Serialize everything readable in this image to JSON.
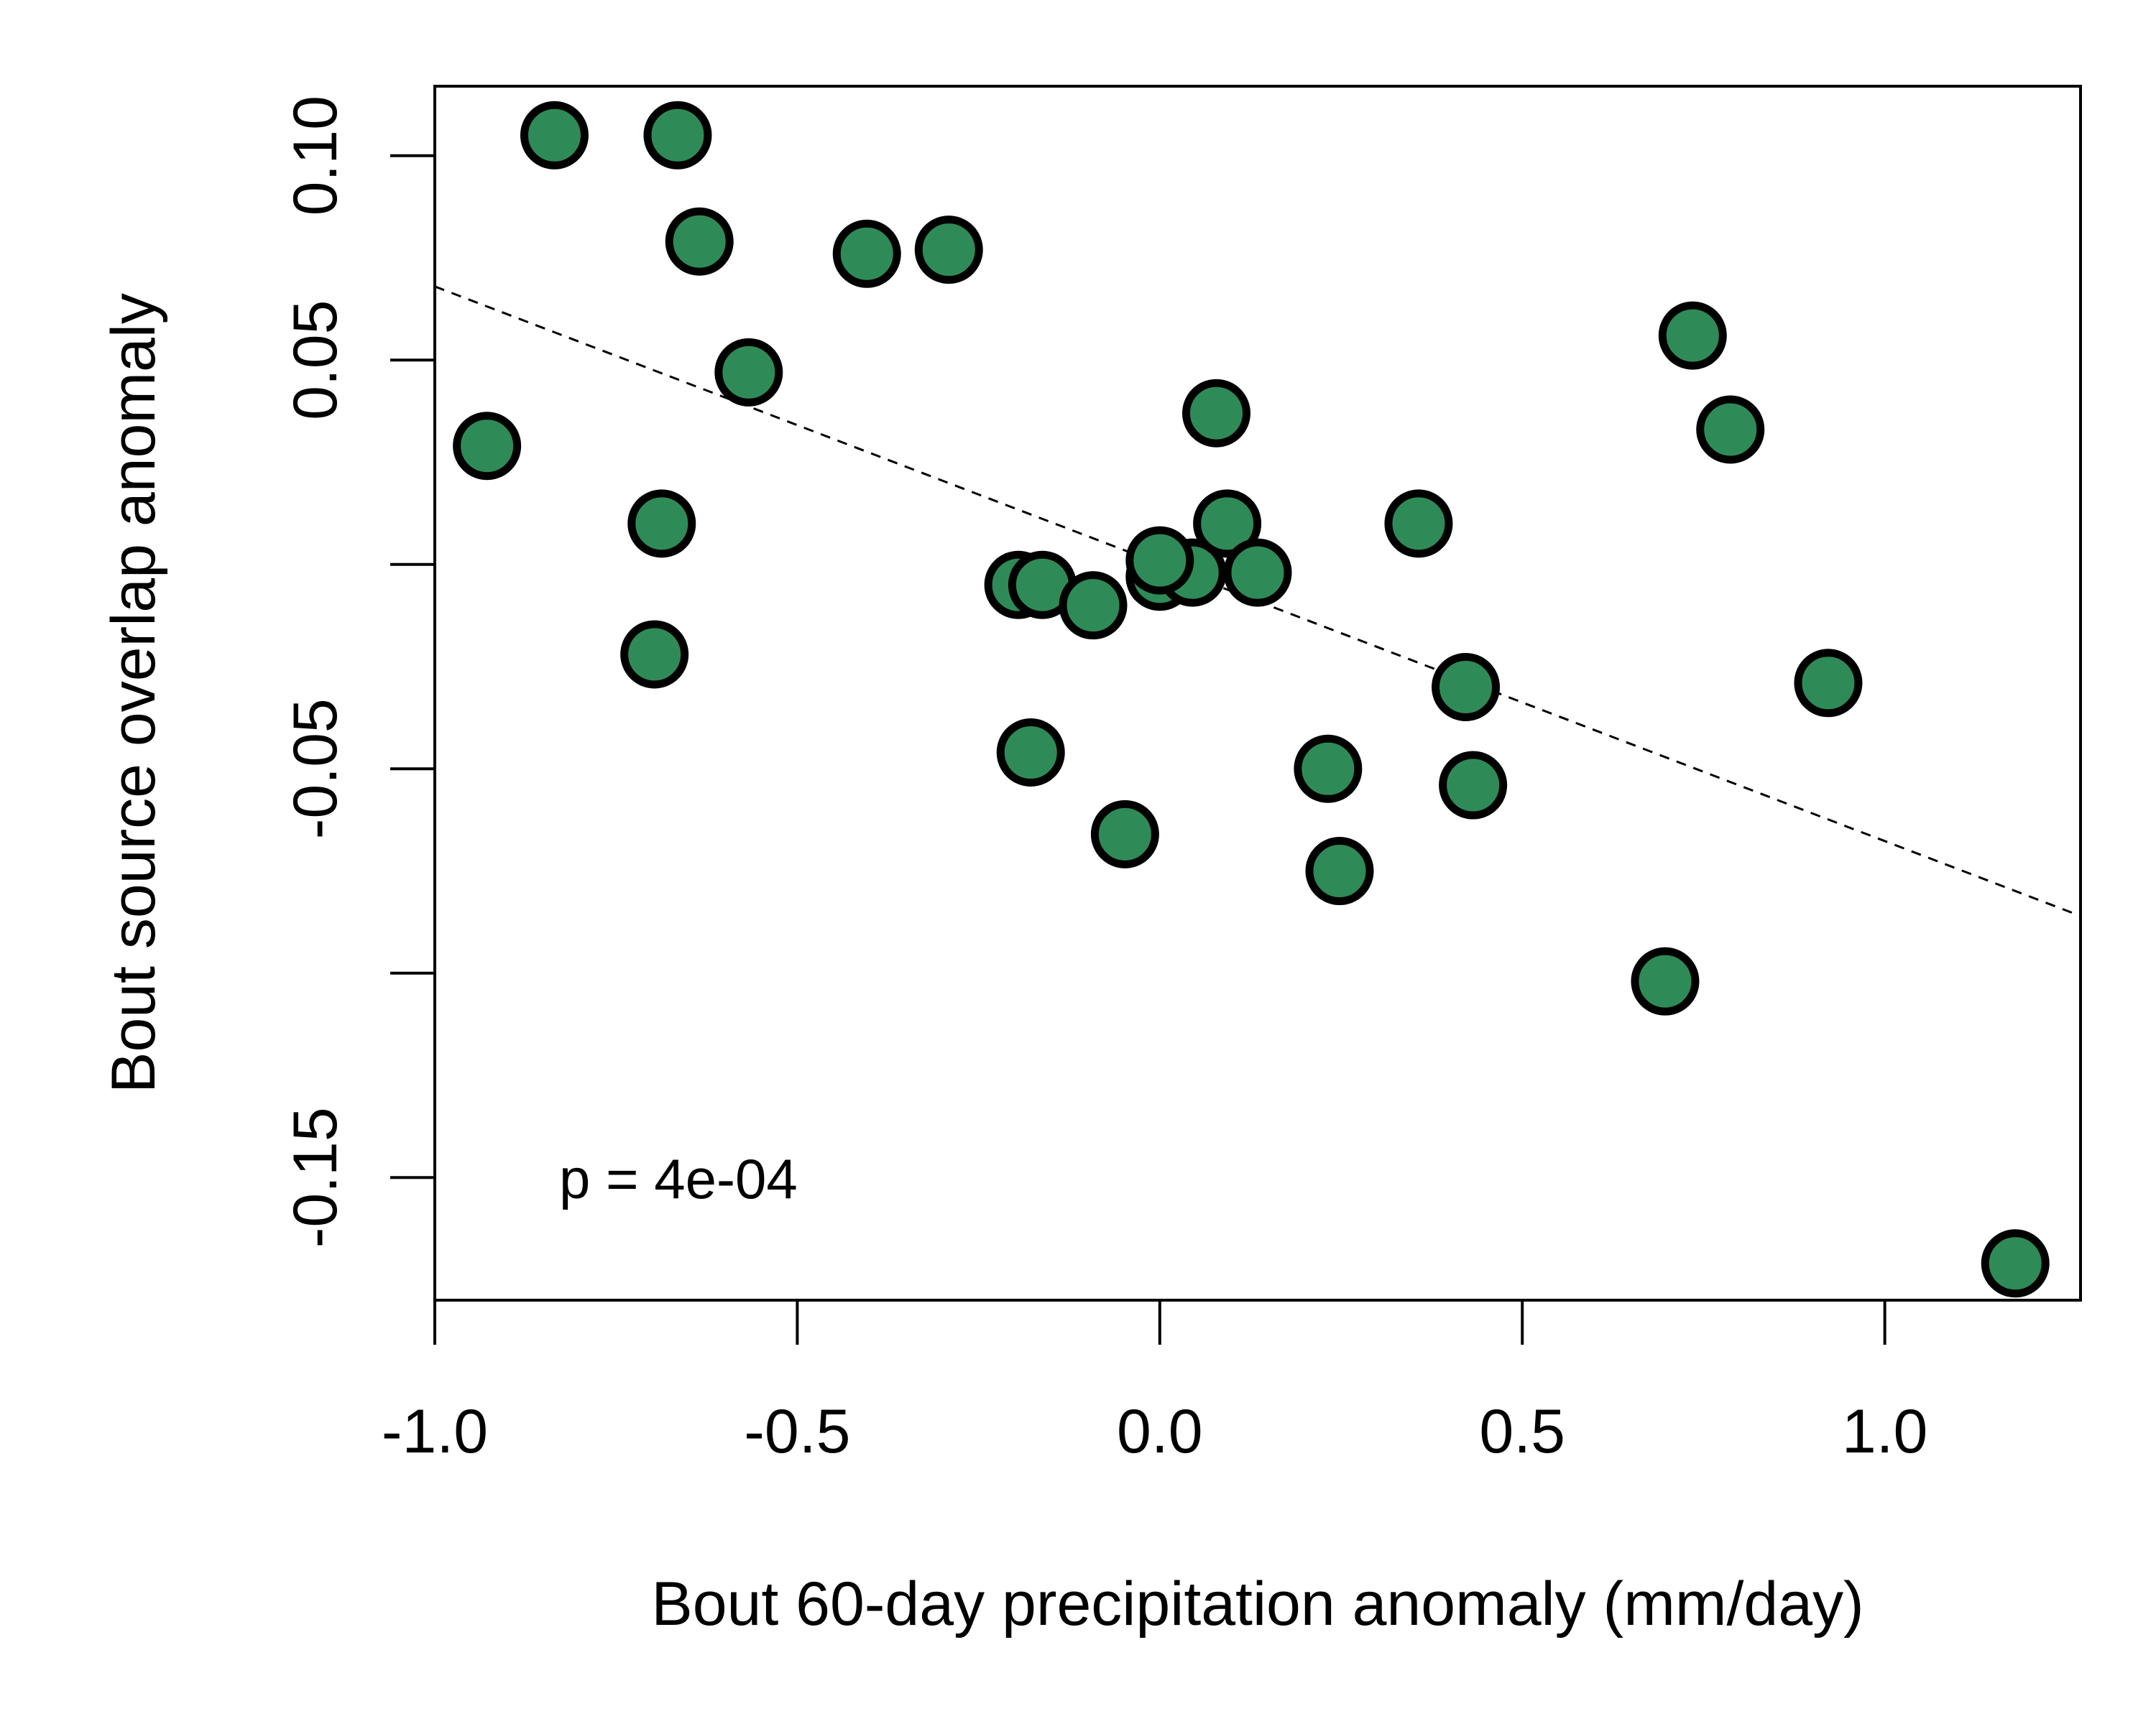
{
  "chart_data": {
    "type": "scatter",
    "title": "",
    "xlabel": "Bout 60-day precipitation anomaly (mm/day)",
    "ylabel": "Bout source overlap anomaly",
    "xlim": [
      -1.0,
      1.27
    ],
    "ylim": [
      -0.18,
      0.117
    ],
    "x_ticks": [
      -1.0,
      -0.5,
      0.0,
      0.5,
      1.0
    ],
    "x_tick_labels": [
      "-1.0",
      "-0.5",
      "0.0",
      "0.5",
      "1.0"
    ],
    "y_ticks": [
      0.1,
      0.05,
      0.0,
      -0.05,
      -0.1,
      -0.15
    ],
    "y_tick_labels": [
      "0.10",
      "0.05",
      "",
      "-0.05",
      "",
      "-0.15"
    ],
    "grid": false,
    "legend": "none",
    "annotation": "p = 4e-04",
    "point_color": "#2e8b57",
    "point_edge_color": "#000000",
    "trend_line": {
      "style": "dashed",
      "x": [
        -1.0,
        1.27
      ],
      "y": [
        0.068,
        -0.086
      ]
    },
    "points": [
      {
        "x": -0.928,
        "y": 0.029
      },
      {
        "x": -0.835,
        "y": 0.105
      },
      {
        "x": -0.665,
        "y": 0.105
      },
      {
        "x": -0.635,
        "y": 0.079
      },
      {
        "x": -0.567,
        "y": 0.047
      },
      {
        "x": -0.404,
        "y": 0.076
      },
      {
        "x": -0.291,
        "y": 0.077
      },
      {
        "x": -0.687,
        "y": 0.01
      },
      {
        "x": -0.697,
        "y": -0.022
      },
      {
        "x": -0.195,
        "y": -0.005
      },
      {
        "x": -0.162,
        "y": -0.005
      },
      {
        "x": -0.092,
        "y": -0.01
      },
      {
        "x": -0.178,
        "y": -0.046
      },
      {
        "x": -0.048,
        "y": -0.066
      },
      {
        "x": 0.0,
        "y": -0.003
      },
      {
        "x": 0.045,
        "y": -0.002
      },
      {
        "x": 0.0,
        "y": 0.001
      },
      {
        "x": 0.078,
        "y": 0.037
      },
      {
        "x": 0.093,
        "y": 0.01
      },
      {
        "x": 0.135,
        "y": -0.002
      },
      {
        "x": 0.232,
        "y": -0.05
      },
      {
        "x": 0.248,
        "y": -0.075
      },
      {
        "x": 0.357,
        "y": 0.01
      },
      {
        "x": 0.422,
        "y": -0.03
      },
      {
        "x": 0.432,
        "y": -0.054
      },
      {
        "x": 0.697,
        "y": -0.102
      },
      {
        "x": 0.735,
        "y": 0.056
      },
      {
        "x": 0.787,
        "y": 0.033
      },
      {
        "x": 0.922,
        "y": -0.029
      },
      {
        "x": 1.18,
        "y": -0.171
      }
    ]
  }
}
